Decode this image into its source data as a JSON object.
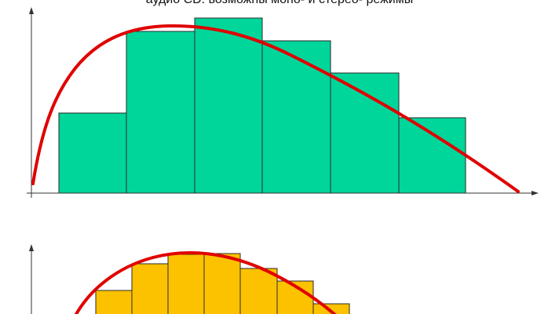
{
  "caption": "аудио CD: возможны моно- и стерео- режимы",
  "colors": {
    "upper_bars": "#00d59a",
    "lower_bars": "#fcc200",
    "curve": "#e00000",
    "axes": "#333333"
  },
  "panels": [
    {
      "name": "upper",
      "bar_levels": [
        0.57,
        1.0,
        1.09,
        0.96,
        0.76,
        0.54
      ],
      "visible": "full"
    },
    {
      "name": "lower",
      "bar_levels": [
        0.4,
        0.81,
        1.0,
        1.0,
        0.78,
        0.55,
        0.3
      ],
      "visible": "partially cropped at bottom"
    }
  ]
}
